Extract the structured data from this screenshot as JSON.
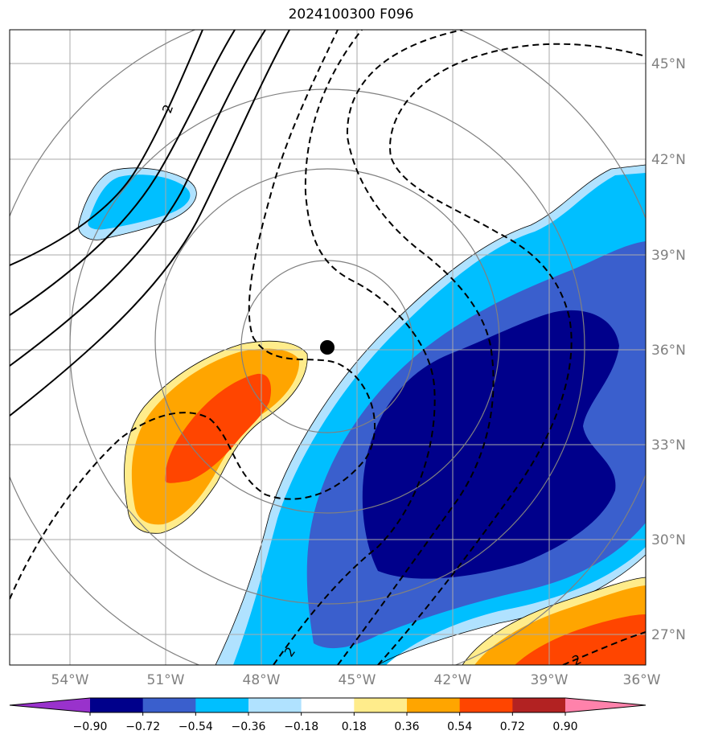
{
  "title": "2024100300 F096",
  "latitude_labels": [
    "45°N",
    "42°N",
    "39°N",
    "36°N",
    "33°N",
    "30°N",
    "27°N"
  ],
  "longitude_labels": [
    "54°W",
    "51°W",
    "48°W",
    "45°W",
    "42°W",
    "39°W",
    "36°W"
  ],
  "colorbar": {
    "ticks": [
      "−0.90",
      "−0.72",
      "−0.54",
      "−0.36",
      "−0.18",
      "0.18",
      "0.36",
      "0.54",
      "0.72",
      "0.90"
    ],
    "colors": [
      "#9932cc",
      "#00008b",
      "#3a5fcd",
      "#00bfff",
      "#b0e2ff",
      "#ffffff",
      "#ffec8b",
      "#ffa500",
      "#ff4500",
      "#b22222",
      "#ff82ab"
    ]
  },
  "contour_labels": [
    "2",
    "2",
    "2"
  ],
  "center_marker": "storm-center"
}
